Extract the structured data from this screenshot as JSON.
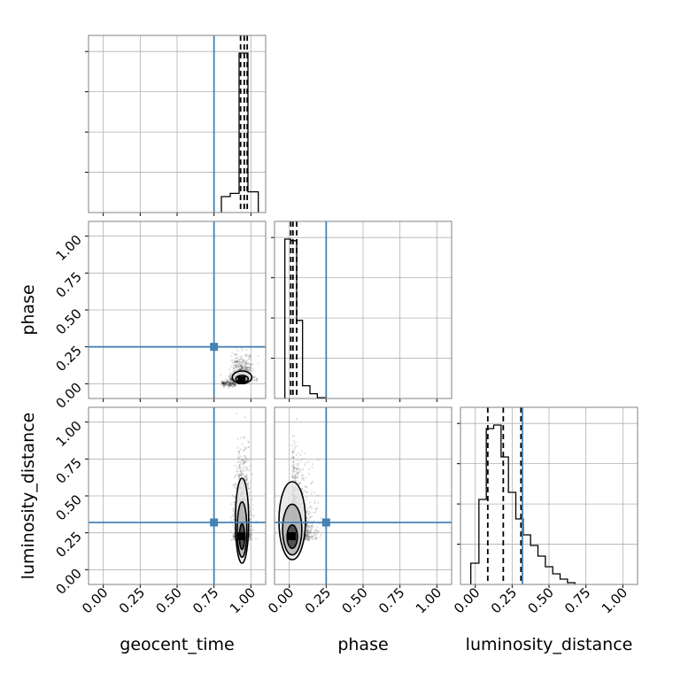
{
  "chart_data": {
    "type": "corner",
    "parameters": [
      "geocent_time",
      "phase",
      "luminosity_distance"
    ],
    "axis_range": [
      -0.1,
      1.1
    ],
    "tick_labels": [
      "0.00",
      "0.25",
      "0.50",
      "0.75",
      "1.00"
    ],
    "tick_values": [
      0,
      0.25,
      0.5,
      0.75,
      1.0
    ],
    "grid": true,
    "truth_color": "#4682b4",
    "truths": {
      "geocent_time": 0.75,
      "phase": 0.25,
      "luminosity_distance": 0.32
    },
    "histograms": {
      "geocent_time": {
        "bin_edges": [
          0.8,
          0.86,
          0.92,
          0.98,
          1.05
        ],
        "counts": [
          0.1,
          0.12,
          1.0,
          0.13
        ],
        "quantiles": [
          0.93,
          0.955,
          0.975
        ]
      },
      "phase": {
        "bin_edges": [
          -0.03,
          0.01,
          0.05,
          0.09,
          0.14,
          0.19,
          0.25
        ],
        "counts": [
          1.0,
          0.99,
          0.49,
          0.08,
          0.03,
          0.005
        ],
        "quantiles": [
          0.01,
          0.025,
          0.05
        ]
      },
      "luminosity_distance": {
        "bin_edges": [
          -0.03,
          0.025,
          0.075,
          0.125,
          0.175,
          0.225,
          0.275,
          0.325,
          0.375,
          0.425,
          0.475,
          0.525,
          0.575,
          0.625,
          0.675
        ],
        "counts": [
          0.12,
          0.48,
          0.88,
          0.9,
          0.72,
          0.52,
          0.37,
          0.28,
          0.22,
          0.16,
          0.1,
          0.06,
          0.03,
          0.01
        ],
        "quantiles": [
          0.085,
          0.19,
          0.31
        ]
      }
    },
    "scatter_2d": {
      "phase_vs_geocent_time": {
        "x_center": 0.94,
        "y_center": 0.02,
        "x_spread": 0.03,
        "y_spread": 0.035
      },
      "luminosity_distance_vs_geocent_time": {
        "x_center": 0.94,
        "y_center": 0.2,
        "x_spread": 0.025,
        "y_spread": 0.12
      },
      "luminosity_distance_vs_phase": {
        "x_center": 0.02,
        "y_center": 0.2,
        "x_spread": 0.05,
        "y_spread": 0.11
      }
    }
  }
}
